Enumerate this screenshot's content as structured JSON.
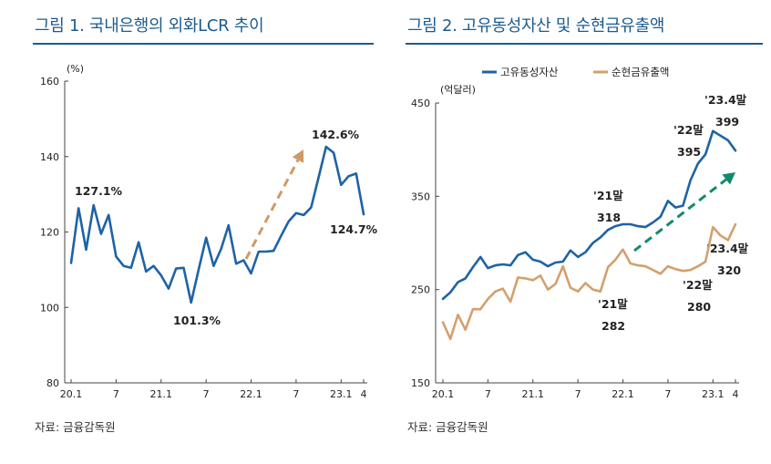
{
  "colors": {
    "blue": "#1e63a6",
    "orange": "#d3a06e",
    "green": "#138a6b",
    "arrow_orange": "#cf9a66",
    "axis": "#444444"
  },
  "chart_data": [
    {
      "type": "line",
      "title": "그림 1. 국내은행의 외화LCR 추이",
      "source": "자료: 금융감독원",
      "ylabel": "(%)",
      "ylim": [
        80,
        160
      ],
      "yticks": [
        "80",
        "100",
        "120",
        "140",
        "160"
      ],
      "xticks": [
        "20.1",
        "7",
        "21.1",
        "7",
        "22.1",
        "7",
        "23.1",
        "4"
      ],
      "series": [
        {
          "name": "외화LCR",
          "color": "#1e63a6",
          "values": [
            111.8,
            126.3,
            115.3,
            127.1,
            119.5,
            124.5,
            113.5,
            111.0,
            110.5,
            117.3,
            109.5,
            111.0,
            108.5,
            105.0,
            110.3,
            110.5,
            101.3,
            110.0,
            118.5,
            111.0,
            115.5,
            121.8,
            111.6,
            112.5,
            109.0,
            114.8,
            114.8,
            115.0,
            119.0,
            122.8,
            125.0,
            124.5,
            126.5,
            134.5,
            142.6,
            141.0,
            132.5,
            134.8,
            135.5,
            124.7
          ]
        }
      ],
      "annotations": [
        "127.1%",
        "101.3%",
        "142.6%",
        "124.7%"
      ]
    },
    {
      "type": "line",
      "title": "그림 2. 고유동성자산 및 순현금유출액",
      "source": "자료: 금융감독원",
      "ylabel": "(억달러)",
      "ylim": [
        150,
        450
      ],
      "yticks": [
        "150",
        "250",
        "350",
        "450"
      ],
      "xticks": [
        "20.1",
        "7",
        "21.1",
        "7",
        "22.1",
        "7",
        "23.1",
        "4"
      ],
      "series": [
        {
          "name": "고유동성자산",
          "color": "#1e63a6",
          "values": [
            240,
            247,
            258,
            262,
            274,
            285,
            273,
            276,
            277,
            276,
            287,
            290,
            282,
            280,
            275,
            279,
            280,
            292,
            285,
            290,
            300,
            306,
            314,
            318,
            320,
            320,
            318,
            317,
            322,
            328,
            345,
            338,
            340,
            367,
            385,
            395,
            420,
            415,
            410,
            399
          ]
        },
        {
          "name": "순현금유출액",
          "color": "#d3a06e",
          "values": [
            215,
            197,
            223,
            207,
            229,
            229,
            240,
            248,
            251,
            237,
            263,
            262,
            260,
            265,
            250,
            256,
            275,
            252,
            248,
            257,
            250,
            248,
            274,
            282,
            293,
            278,
            276,
            275,
            271,
            267,
            275,
            272,
            270,
            271,
            275,
            280,
            317,
            308,
            303,
            320
          ]
        }
      ],
      "legend": [
        "고유동성자산",
        "순현금유출액"
      ],
      "annotations": [
        {
          "line1": "'21말",
          "line2": "318"
        },
        {
          "line1": "'22말",
          "line2": "395"
        },
        {
          "line1": "'23.4말",
          "line2": "399"
        },
        {
          "line1": "'21말",
          "line2": "282"
        },
        {
          "line1": "'22말",
          "line2": "280"
        },
        {
          "line1": "'23.4말",
          "line2": "320"
        }
      ]
    }
  ]
}
